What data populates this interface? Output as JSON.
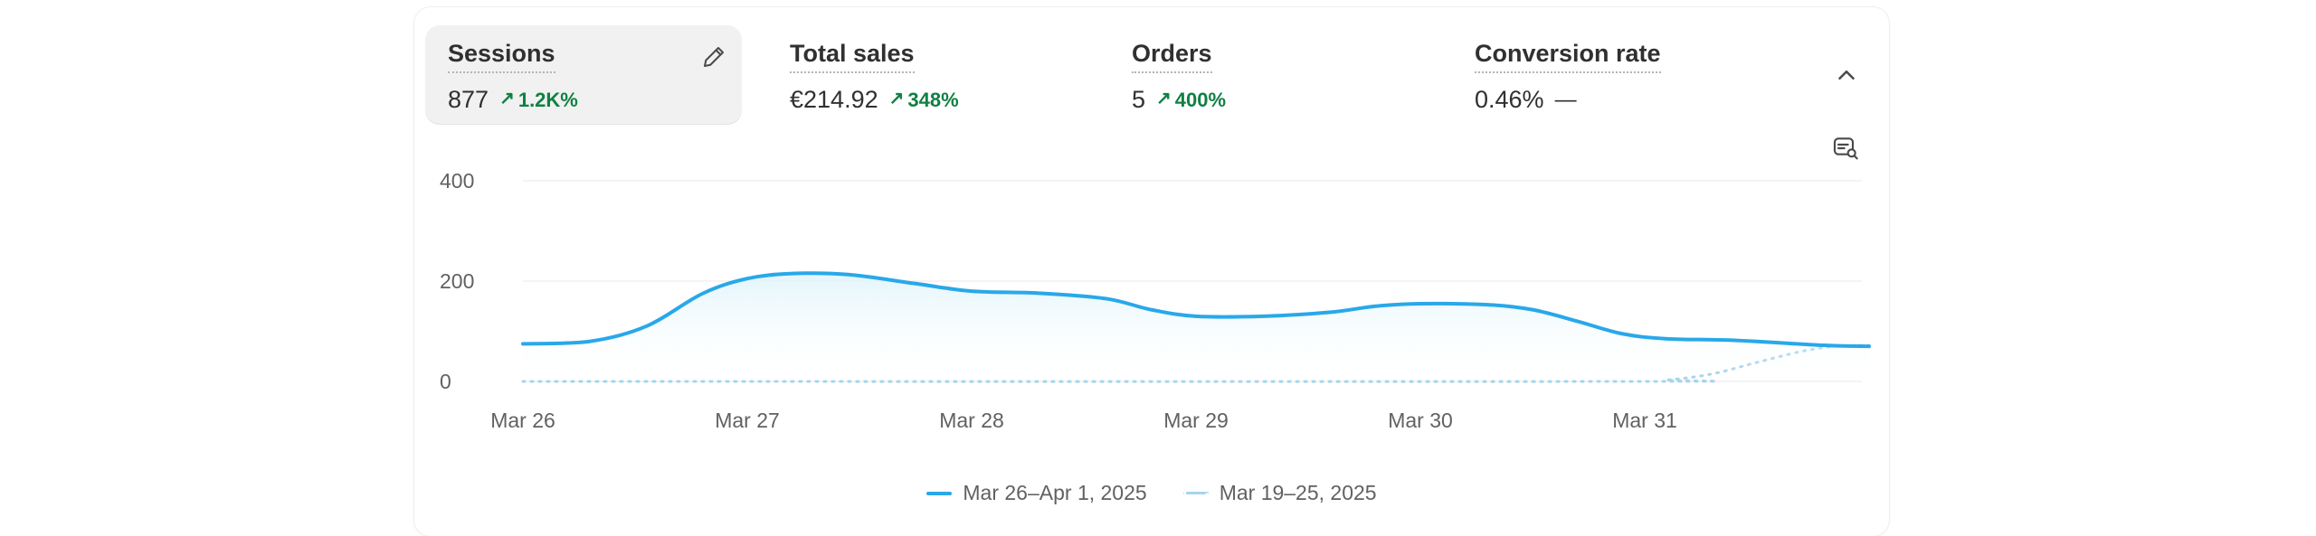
{
  "metrics": [
    {
      "label": "Sessions",
      "value": "877",
      "change": "1.2K%",
      "active": true
    },
    {
      "label": "Total sales",
      "value": "€214.92",
      "change": "348%"
    },
    {
      "label": "Orders",
      "value": "5",
      "change": "400%"
    },
    {
      "label": "Conversion rate",
      "value": "0.46%",
      "change_flat": "—"
    }
  ],
  "icons": {
    "edit": "pencil-icon",
    "collapse": "chevron-up-icon",
    "comment": "comment-search-icon"
  },
  "colors": {
    "current_series": "#29a8e9",
    "previous_series": "#a6d4ee",
    "positive_change": "#108043"
  },
  "chart_data": {
    "type": "line",
    "x_ticks": [
      "Mar 26",
      "Mar 27",
      "Mar 28",
      "Mar 29",
      "Mar 30",
      "Mar 31"
    ],
    "ylim": [
      0,
      400
    ],
    "y_ticks": [
      "400",
      "200",
      "0"
    ],
    "grid": true,
    "legend_placement": "bottom",
    "series": [
      {
        "name": "Mar 26–Apr 1, 2025",
        "style": "solid",
        "points": [
          [
            0.0,
            75
          ],
          [
            0.3,
            80
          ],
          [
            0.55,
            110
          ],
          [
            0.8,
            175
          ],
          [
            1.0,
            205
          ],
          [
            1.2,
            215
          ],
          [
            1.45,
            213
          ],
          [
            1.75,
            195
          ],
          [
            2.0,
            180
          ],
          [
            2.3,
            176
          ],
          [
            2.6,
            165
          ],
          [
            2.8,
            143
          ],
          [
            3.0,
            130
          ],
          [
            3.3,
            130
          ],
          [
            3.6,
            138
          ],
          [
            3.8,
            150
          ],
          [
            4.0,
            155
          ],
          [
            4.3,
            153
          ],
          [
            4.5,
            143
          ],
          [
            4.7,
            120
          ],
          [
            4.9,
            95
          ],
          [
            5.1,
            85
          ],
          [
            5.4,
            82
          ],
          [
            5.8,
            72
          ],
          [
            6.0,
            70
          ]
        ]
      },
      {
        "name": "Mar 19–25, 2025",
        "style": "dotted",
        "points": [
          [
            0.0,
            0
          ],
          [
            4.9,
            0
          ],
          [
            5.1,
            3
          ],
          [
            5.3,
            15
          ],
          [
            5.5,
            38
          ],
          [
            5.7,
            60
          ],
          [
            5.85,
            70
          ],
          [
            6.0,
            72
          ]
        ]
      }
    ]
  }
}
